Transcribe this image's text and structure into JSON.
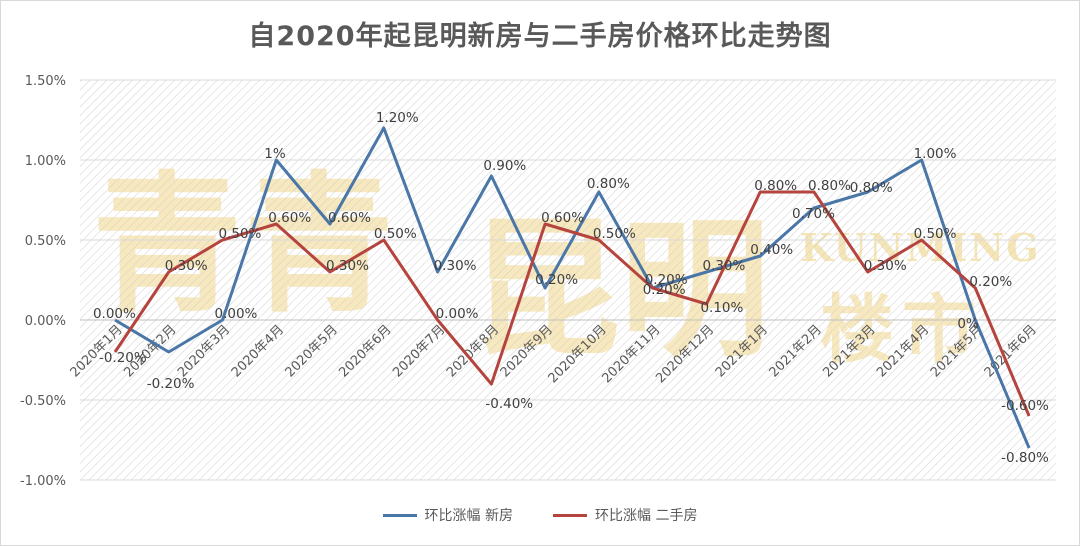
{
  "chart_data": {
    "type": "line",
    "title": "自2020年起昆明新房与二手房价格环比走势图",
    "categories": [
      "2020年1月",
      "2020年2月",
      "2020年3月",
      "2020年4月",
      "2020年5月",
      "2020年6月",
      "2020年7月",
      "2020年8月",
      "2020年9月",
      "2020年10月",
      "2020年11月",
      "2020年12月",
      "2021年1月",
      "2021年2月",
      "2021年3月",
      "2021年4月",
      "2021年5月",
      "2021年6月"
    ],
    "ylim": [
      -1.0,
      1.5
    ],
    "yticks": [
      1.5,
      1.0,
      0.5,
      0.0,
      -0.5,
      -1.0
    ],
    "ytick_labels": [
      "1.50%",
      "1.00%",
      "0.50%",
      "0.00%",
      "-0.50%",
      "-1.00%"
    ],
    "grid": true,
    "legend_position": "bottom",
    "series": [
      {
        "name": "环比涨幅 新房",
        "color": "#4a76a8",
        "values": [
          0.0,
          -0.2,
          0.0,
          1.0,
          0.6,
          1.2,
          0.3,
          0.9,
          0.2,
          0.8,
          0.2,
          0.3,
          0.4,
          0.7,
          0.8,
          1.0,
          0.0,
          -0.8
        ],
        "labels": [
          "0.00%",
          "-0.20%",
          "0.00%",
          "1%",
          "0.60%",
          "1.20%",
          "0.30%",
          "0.90%",
          "0.20%",
          "0.80%",
          "0.20%",
          "0.30%",
          "0.40%",
          "0.70%",
          "0.80%",
          "1.00%",
          "0%",
          "-0.80%"
        ]
      },
      {
        "name": "环比涨幅 二手房",
        "color": "#b5443e",
        "values": [
          -0.2,
          0.3,
          0.5,
          0.6,
          0.3,
          0.5,
          0.0,
          -0.4,
          0.6,
          0.5,
          0.2,
          0.1,
          0.8,
          0.8,
          0.3,
          0.5,
          0.2,
          -0.6
        ],
        "labels": [
          "-0.20%",
          "0.30%",
          "0.50%",
          "0.60%",
          "0.30%",
          "0.50%",
          "0.00%",
          "-0.40%",
          "0.60%",
          "0.50%",
          "0.20%",
          "0.10%",
          "0.80%",
          "0.80%",
          "0.30%",
          "0.50%",
          "0.20%",
          "-0.60%"
        ]
      }
    ]
  },
  "watermark": {
    "logo_chars": [
      "青",
      "青"
    ],
    "big_chars": "昆明",
    "latin": "KUNMING",
    "sub": "楼市"
  }
}
